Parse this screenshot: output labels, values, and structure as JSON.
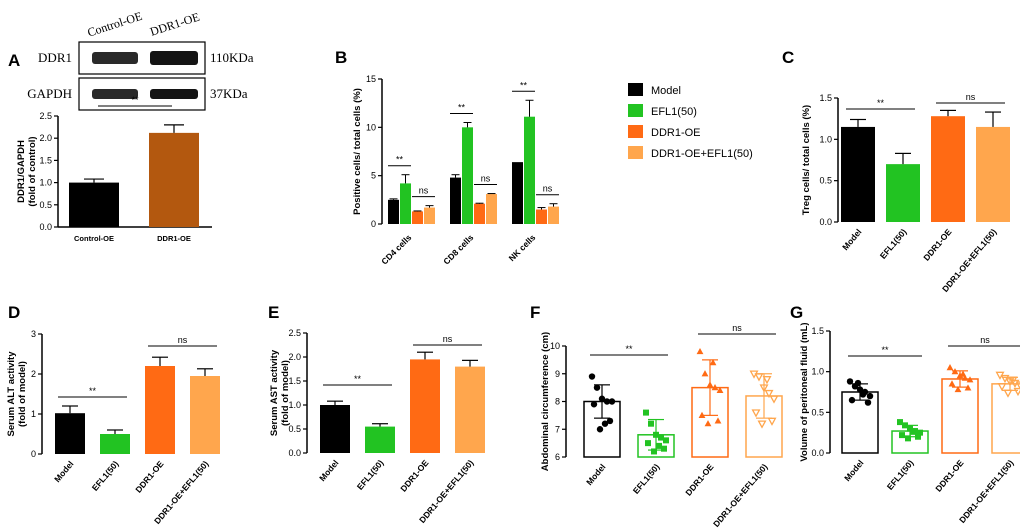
{
  "colors": {
    "model": "#000000",
    "efl": "#22c322",
    "ddr": "#ff6a14",
    "combo": "#ffa64d",
    "ddr1oe_bar": "#b3580f"
  },
  "chart_data": [
    {
      "panel": "A",
      "type": "bar",
      "blot": {
        "lanes": [
          "Control-OE",
          "DDR1-OE"
        ],
        "rows": [
          {
            "protein": "DDR1",
            "size": "110KDa"
          },
          {
            "protein": "GAPDH",
            "size": "37KDa"
          }
        ]
      },
      "categories": [
        "Control-OE",
        "DDR1-OE"
      ],
      "values": [
        1.0,
        2.12
      ],
      "errors": [
        0.08,
        0.18
      ],
      "ylabel": "DDR1/GAPDH (fold of control)",
      "ylabel_lines": [
        "DDR1/GAPDH",
        "(fold of control)"
      ],
      "ylim": [
        0,
        2.5
      ],
      "yticks": [
        "0.0",
        "0.5",
        "1.0",
        "1.5",
        "2.0",
        "2.5"
      ],
      "sig": "**"
    },
    {
      "panel": "B",
      "type": "bar",
      "categories": [
        "CD4 cells",
        "CD8 cells",
        "NK cells"
      ],
      "series": [
        {
          "name": "Model",
          "values": [
            2.5,
            4.8,
            6.4
          ],
          "errors": [
            0.1,
            0.3,
            0.0
          ]
        },
        {
          "name": "EFL1(50)",
          "values": [
            4.2,
            10.0,
            11.1
          ],
          "errors": [
            0.9,
            0.5,
            1.7
          ]
        },
        {
          "name": "DDR1-OE",
          "values": [
            1.3,
            2.1,
            1.5
          ],
          "errors": [
            0.05,
            0.05,
            0.2
          ]
        },
        {
          "name": "DDR1-OE+EFL1(50)",
          "values": [
            1.7,
            3.1,
            1.8
          ],
          "errors": [
            0.2,
            0.05,
            0.3
          ]
        }
      ],
      "ylabel": "Positive cells/ total cells (%)",
      "ylim": [
        0,
        15
      ],
      "yticks": [
        "0",
        "5",
        "10",
        "15"
      ],
      "sig": [
        "**",
        "ns",
        "**",
        "ns",
        "**",
        "ns"
      ]
    },
    {
      "panel": "C",
      "type": "bar",
      "categories": [
        "Model",
        "EFL1(50)",
        "DDR1-OE",
        "DDR1-OE+EFL1(50)"
      ],
      "values": [
        1.15,
        0.7,
        1.28,
        1.15
      ],
      "errors": [
        0.09,
        0.13,
        0.07,
        0.18
      ],
      "ylabel": "Treg cells/ total cells (%)",
      "ylim": [
        0,
        1.5
      ],
      "yticks": [
        "0.0",
        "0.5",
        "1.0",
        "1.5"
      ],
      "sig": [
        "**",
        "ns"
      ]
    },
    {
      "panel": "D",
      "type": "bar",
      "categories": [
        "Model",
        "EFL1(50)",
        "DDR1-OE",
        "DDR1-OE+EFL1(50)"
      ],
      "values": [
        1.02,
        0.5,
        2.2,
        1.95
      ],
      "errors": [
        0.18,
        0.1,
        0.22,
        0.18
      ],
      "ylabel": "Serum ALT activity (fold of model)",
      "ylabel_lines": [
        "Serum ALT activity",
        "(fold of model)"
      ],
      "ylim": [
        0,
        3
      ],
      "yticks": [
        "0",
        "1",
        "2",
        "3"
      ],
      "sig": [
        "**",
        "ns"
      ]
    },
    {
      "panel": "E",
      "type": "bar",
      "categories": [
        "Model",
        "EFL1(50)",
        "DDR1-OE",
        "DDR1-OE+EFL1(50)"
      ],
      "values": [
        1.0,
        0.55,
        1.95,
        1.8
      ],
      "errors": [
        0.08,
        0.06,
        0.15,
        0.13
      ],
      "ylabel": "Serum AST activity (fold of model)",
      "ylabel_lines": [
        "Serum AST activity",
        "(fold of model)"
      ],
      "ylim": [
        0,
        2.5
      ],
      "yticks": [
        "0.0",
        "0.5",
        "1.0",
        "1.5",
        "2.0",
        "2.5"
      ],
      "sig": [
        "**",
        "ns"
      ]
    },
    {
      "panel": "F",
      "type": "scatter",
      "categories": [
        "Model",
        "EFL1(50)",
        "DDR1-OE",
        "DDR1-OE+EFL1(50)"
      ],
      "means": [
        8.0,
        6.8,
        8.5,
        8.2
      ],
      "errors": [
        0.6,
        0.55,
        1.0,
        0.8
      ],
      "points": [
        [
          8.9,
          8.5,
          8.1,
          8.0,
          8.0,
          7.9,
          7.3,
          7.0,
          7.2
        ],
        [
          7.6,
          7.2,
          6.8,
          6.7,
          6.6,
          6.5,
          6.3,
          6.2,
          6.4
        ],
        [
          9.8,
          9.0,
          8.6,
          8.5,
          8.4,
          7.5,
          7.3,
          7.2,
          9.4
        ],
        [
          9.0,
          8.9,
          8.5,
          8.3,
          8.1,
          7.6,
          7.3,
          7.2,
          8.8
        ]
      ],
      "ylabel": "Abdominal circumference (cm)",
      "ylim": [
        6,
        10
      ],
      "yticks": [
        "6",
        "7",
        "8",
        "9",
        "10"
      ],
      "sig": [
        "**",
        "ns"
      ]
    },
    {
      "panel": "G",
      "type": "scatter",
      "categories": [
        "Model",
        "EFL1(50)",
        "DDR1-OE",
        "DDR1-OE+EFL1(50)"
      ],
      "means": [
        0.75,
        0.27,
        0.91,
        0.85
      ],
      "errors": [
        0.1,
        0.07,
        0.1,
        0.08
      ],
      "points": [
        [
          0.88,
          0.82,
          0.78,
          0.75,
          0.7,
          0.65,
          0.62,
          0.86,
          0.72
        ],
        [
          0.38,
          0.34,
          0.3,
          0.27,
          0.25,
          0.22,
          0.2,
          0.18,
          0.26
        ],
        [
          1.05,
          1.0,
          0.95,
          0.92,
          0.9,
          0.85,
          0.8,
          0.78,
          0.97
        ],
        [
          0.96,
          0.92,
          0.88,
          0.86,
          0.84,
          0.82,
          0.76,
          0.74,
          0.9
        ]
      ],
      "ylabel": "Volume of peritoneal fluid (mL)",
      "ylim": [
        0,
        1.5
      ],
      "yticks": [
        "0.0",
        "0.5",
        "1.0",
        "1.5"
      ],
      "sig": [
        "**",
        "ns"
      ]
    }
  ]
}
